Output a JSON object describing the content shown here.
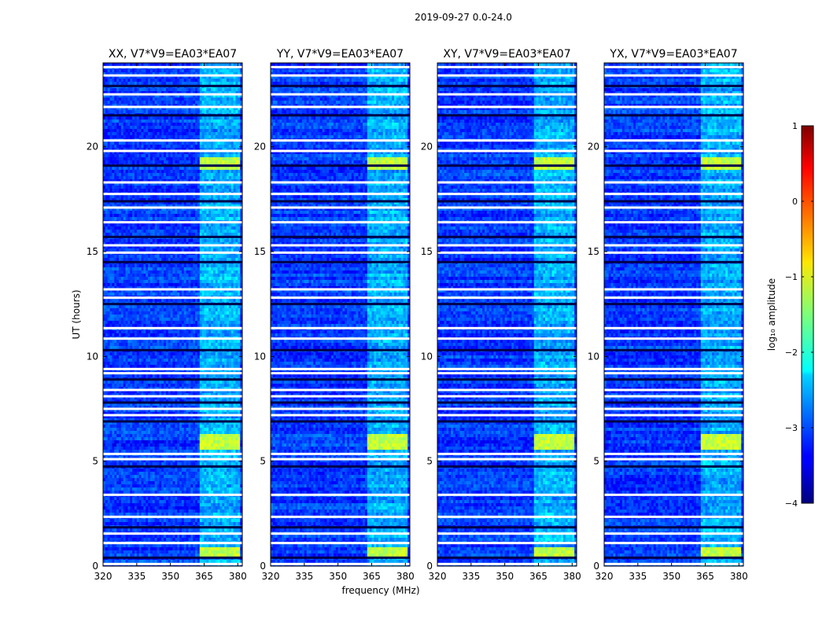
{
  "chart_data": {
    "type": "heatmap",
    "suptitle": "2019-09-27 0.0-24.0",
    "panels": [
      {
        "title": "XX, V7*V9=EA03*EA07"
      },
      {
        "title": "YY, V7*V9=EA03*EA07"
      },
      {
        "title": "XY, V7*V9=EA03*EA07"
      },
      {
        "title": "YX, V7*V9=EA03*EA07"
      }
    ],
    "xlabel": "frequency (MHz)",
    "ylabel": "UT (hours)",
    "xlim": [
      320,
      382
    ],
    "ylim": [
      0,
      24
    ],
    "xticks": [
      320,
      335,
      350,
      365,
      380
    ],
    "yticks": [
      0,
      5,
      10,
      15,
      20
    ],
    "xticklabels": [
      "320",
      "335",
      "350",
      "365",
      "380"
    ],
    "yticklabels": [
      "0",
      "5",
      "10",
      "15",
      "20"
    ],
    "colorbar": {
      "label": "log₁₀ amplitude",
      "min": -4,
      "max": 1,
      "ticks": [
        1,
        0,
        -1,
        -2,
        -3,
        -4
      ],
      "ticklabels": [
        "1",
        "0",
        "−1",
        "−2",
        "−3",
        "−4"
      ],
      "colormap": "jet"
    },
    "flagged_hours": [
      0.1,
      0.4,
      1.1,
      1.55,
      1.85,
      2.35,
      3.4,
      4.75,
      5.1,
      5.35,
      6.9,
      7.2,
      7.5,
      7.8,
      8.1,
      8.4,
      8.9,
      9.2,
      9.4,
      10.3,
      10.85,
      11.35,
      12.5,
      12.8,
      13.2,
      14.5,
      14.95,
      15.3,
      15.7,
      16.4,
      17.1,
      17.4,
      17.75,
      18.3,
      19.1,
      19.8,
      20.3,
      21.5,
      21.9,
      22.5,
      22.9,
      23.4,
      23.8
    ],
    "rfi_bands_mhz": [
      [
        363,
        367
      ],
      [
        367.5,
        371.5
      ],
      [
        372,
        376.5
      ],
      [
        377,
        381
      ]
    ],
    "bright_hours": [
      [
        0.45,
        0.85
      ],
      [
        5.5,
        6.3
      ],
      [
        18.9,
        19.5
      ]
    ],
    "background_log_amplitude": -3.1,
    "peak_log_amplitude": -1.0
  }
}
